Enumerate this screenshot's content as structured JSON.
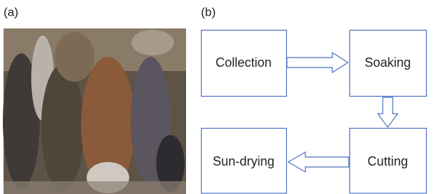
{
  "panels": {
    "a": {
      "label": "(a)"
    },
    "b": {
      "label": "(b)"
    }
  },
  "nodes": [
    {
      "label": "Collection"
    },
    {
      "label": "Soaking"
    },
    {
      "label": "Cutting"
    },
    {
      "label": "Sun-drying"
    }
  ]
}
